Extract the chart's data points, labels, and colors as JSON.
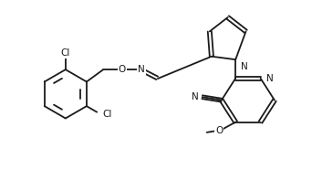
{
  "bg_color": "#ffffff",
  "line_color": "#1a1a1a",
  "line_width": 1.3,
  "font_size": 7.5,
  "figsize": [
    3.42,
    2.09
  ],
  "dpi": 100,
  "xlim": [
    0,
    10
  ],
  "ylim": [
    0,
    6
  ]
}
